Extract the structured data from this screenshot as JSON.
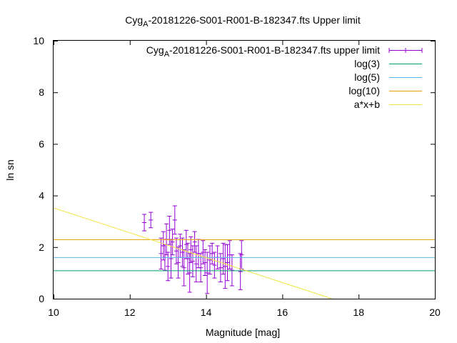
{
  "chart_data": {
    "type": "scatter",
    "title": "Cyg_A-20181226-S001-R001-B-182347.fts Upper limit",
    "title_parts": {
      "base": "Cyg",
      "sub": "A",
      "rest": "-20181226-S001-R001-B-182347.fts Upper limit"
    },
    "xlabel": "Magnitude [mag]",
    "ylabel": "ln sn",
    "xlim": [
      10,
      20
    ],
    "ylim": [
      0,
      10
    ],
    "xticks": [
      10,
      12,
      14,
      16,
      18,
      20
    ],
    "yticks": [
      0,
      2,
      4,
      6,
      8,
      10
    ],
    "grid": false,
    "legend_position": "top-right",
    "series": [
      {
        "name": "Cyg_A-20181226-S001-R001-B-182347.fts upper limit",
        "name_parts": {
          "base": "Cyg",
          "sub": "A",
          "rest": "-20181226-S001-R001-B-182347.fts upper limit"
        },
        "kind": "errorbars",
        "color": "#9400d3",
        "points": [
          {
            "x": 12.38,
            "y": 2.95,
            "err": 0.32
          },
          {
            "x": 12.55,
            "y": 3.05,
            "err": 0.3
          },
          {
            "x": 12.82,
            "y": 1.75,
            "err": 0.6
          },
          {
            "x": 12.88,
            "y": 2.05,
            "err": 0.55
          },
          {
            "x": 12.92,
            "y": 1.6,
            "err": 0.5
          },
          {
            "x": 12.96,
            "y": 2.3,
            "err": 0.6
          },
          {
            "x": 13.0,
            "y": 1.25,
            "err": 0.55
          },
          {
            "x": 13.04,
            "y": 2.65,
            "err": 0.55
          },
          {
            "x": 13.08,
            "y": 1.55,
            "err": 0.75
          },
          {
            "x": 13.12,
            "y": 2.2,
            "err": 0.5
          },
          {
            "x": 13.18,
            "y": 3.05,
            "err": 0.55
          },
          {
            "x": 13.22,
            "y": 1.85,
            "err": 0.5
          },
          {
            "x": 13.27,
            "y": 1.4,
            "err": 0.6
          },
          {
            "x": 13.32,
            "y": 2.05,
            "err": 0.45
          },
          {
            "x": 13.38,
            "y": 1.8,
            "err": 0.55
          },
          {
            "x": 13.42,
            "y": 1.2,
            "err": 0.7
          },
          {
            "x": 13.48,
            "y": 2.1,
            "err": 0.55
          },
          {
            "x": 13.52,
            "y": 1.55,
            "err": 0.6
          },
          {
            "x": 13.57,
            "y": 1.0,
            "err": 0.75
          },
          {
            "x": 13.6,
            "y": 1.9,
            "err": 0.5
          },
          {
            "x": 13.65,
            "y": 1.45,
            "err": 0.6
          },
          {
            "x": 13.7,
            "y": 2.2,
            "err": 0.4
          },
          {
            "x": 13.74,
            "y": 1.35,
            "err": 0.7
          },
          {
            "x": 13.8,
            "y": 1.75,
            "err": 0.55
          },
          {
            "x": 13.86,
            "y": 1.2,
            "err": 0.55
          },
          {
            "x": 13.92,
            "y": 1.8,
            "err": 0.45
          },
          {
            "x": 13.97,
            "y": 1.4,
            "err": 0.5
          },
          {
            "x": 14.03,
            "y": 1.0,
            "err": 0.8
          },
          {
            "x": 14.1,
            "y": 1.5,
            "err": 0.55
          },
          {
            "x": 14.16,
            "y": 1.75,
            "err": 0.4
          },
          {
            "x": 14.22,
            "y": 1.3,
            "err": 0.5
          },
          {
            "x": 14.3,
            "y": 1.6,
            "err": 0.45
          },
          {
            "x": 14.38,
            "y": 1.2,
            "err": 0.55
          },
          {
            "x": 14.45,
            "y": 1.55,
            "err": 0.6
          },
          {
            "x": 14.5,
            "y": 1.25,
            "err": 0.85
          },
          {
            "x": 14.56,
            "y": 1.4,
            "err": 0.7
          },
          {
            "x": 14.62,
            "y": 1.7,
            "err": 0.55
          },
          {
            "x": 14.68,
            "y": 1.1,
            "err": 0.6
          },
          {
            "x": 14.9,
            "y": 1.05,
            "err": 0.7
          },
          {
            "x": 14.93,
            "y": 1.7,
            "err": 0.55
          }
        ]
      },
      {
        "name": "log(3)",
        "kind": "hline",
        "color": "#009e73",
        "y": 1.0986
      },
      {
        "name": "log(5)",
        "kind": "hline",
        "color": "#56b4e9",
        "y": 1.6094
      },
      {
        "name": "log(10)",
        "kind": "hline",
        "color": "#e69f00",
        "y": 2.3026
      },
      {
        "name": "a*x+b",
        "kind": "line",
        "color": "#f0e442",
        "a": -0.4822,
        "b": 8.3417
      }
    ]
  }
}
